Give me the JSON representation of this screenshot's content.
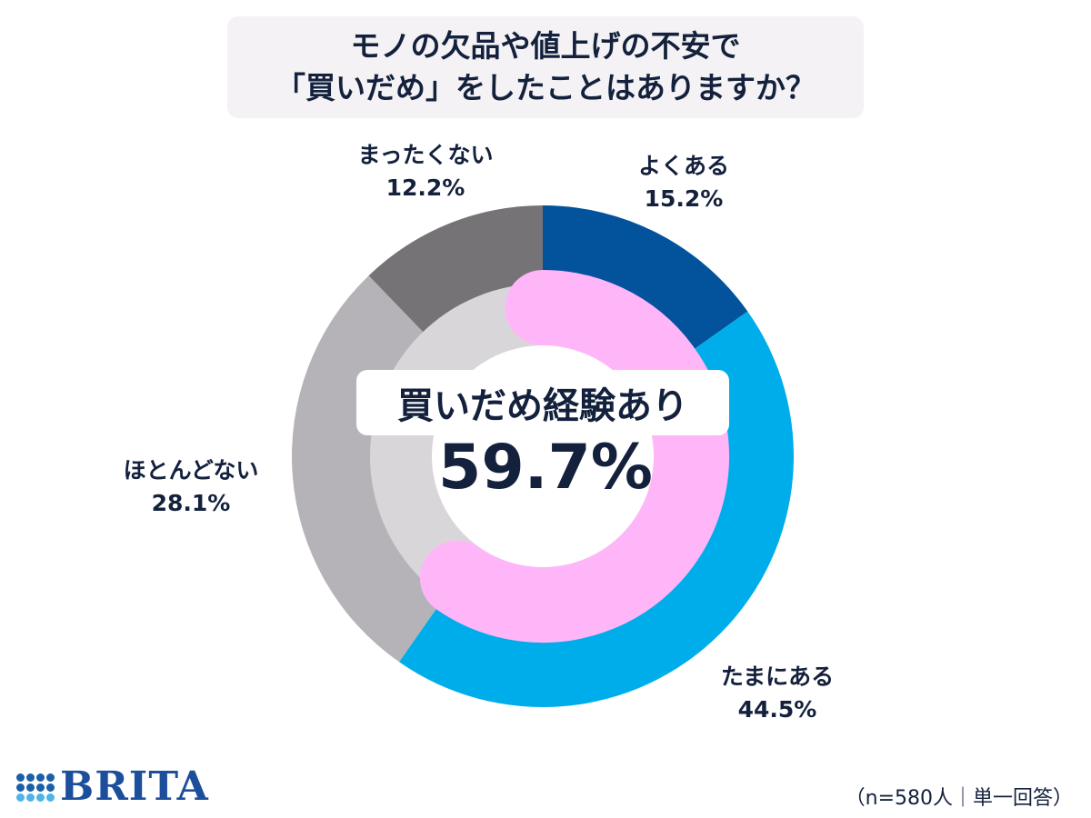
{
  "title": {
    "line1": "モノの欠品や値上げの不安で",
    "line2": "「買いだめ」をしたことはありますか？"
  },
  "chart_data": {
    "type": "pie",
    "categories": [
      "よくある",
      "たまにある",
      "ほとんどない",
      "まったくない"
    ],
    "values": [
      15.2,
      44.5,
      28.1,
      12.2
    ],
    "value_labels": [
      "15.2%",
      "44.5%",
      "28.1%",
      "12.2%"
    ],
    "colors": [
      "#03529c",
      "#00adeb",
      "#b5b2b8",
      "#767377"
    ],
    "inner_ring": {
      "label": "買いだめ経験あり",
      "value": 59.7,
      "value_label": "59.7%",
      "color": "#ffb6f9",
      "track_color": "#d9d6da"
    }
  },
  "note": "（n=580人｜単一回答）",
  "logo": {
    "text": "BRITA"
  }
}
